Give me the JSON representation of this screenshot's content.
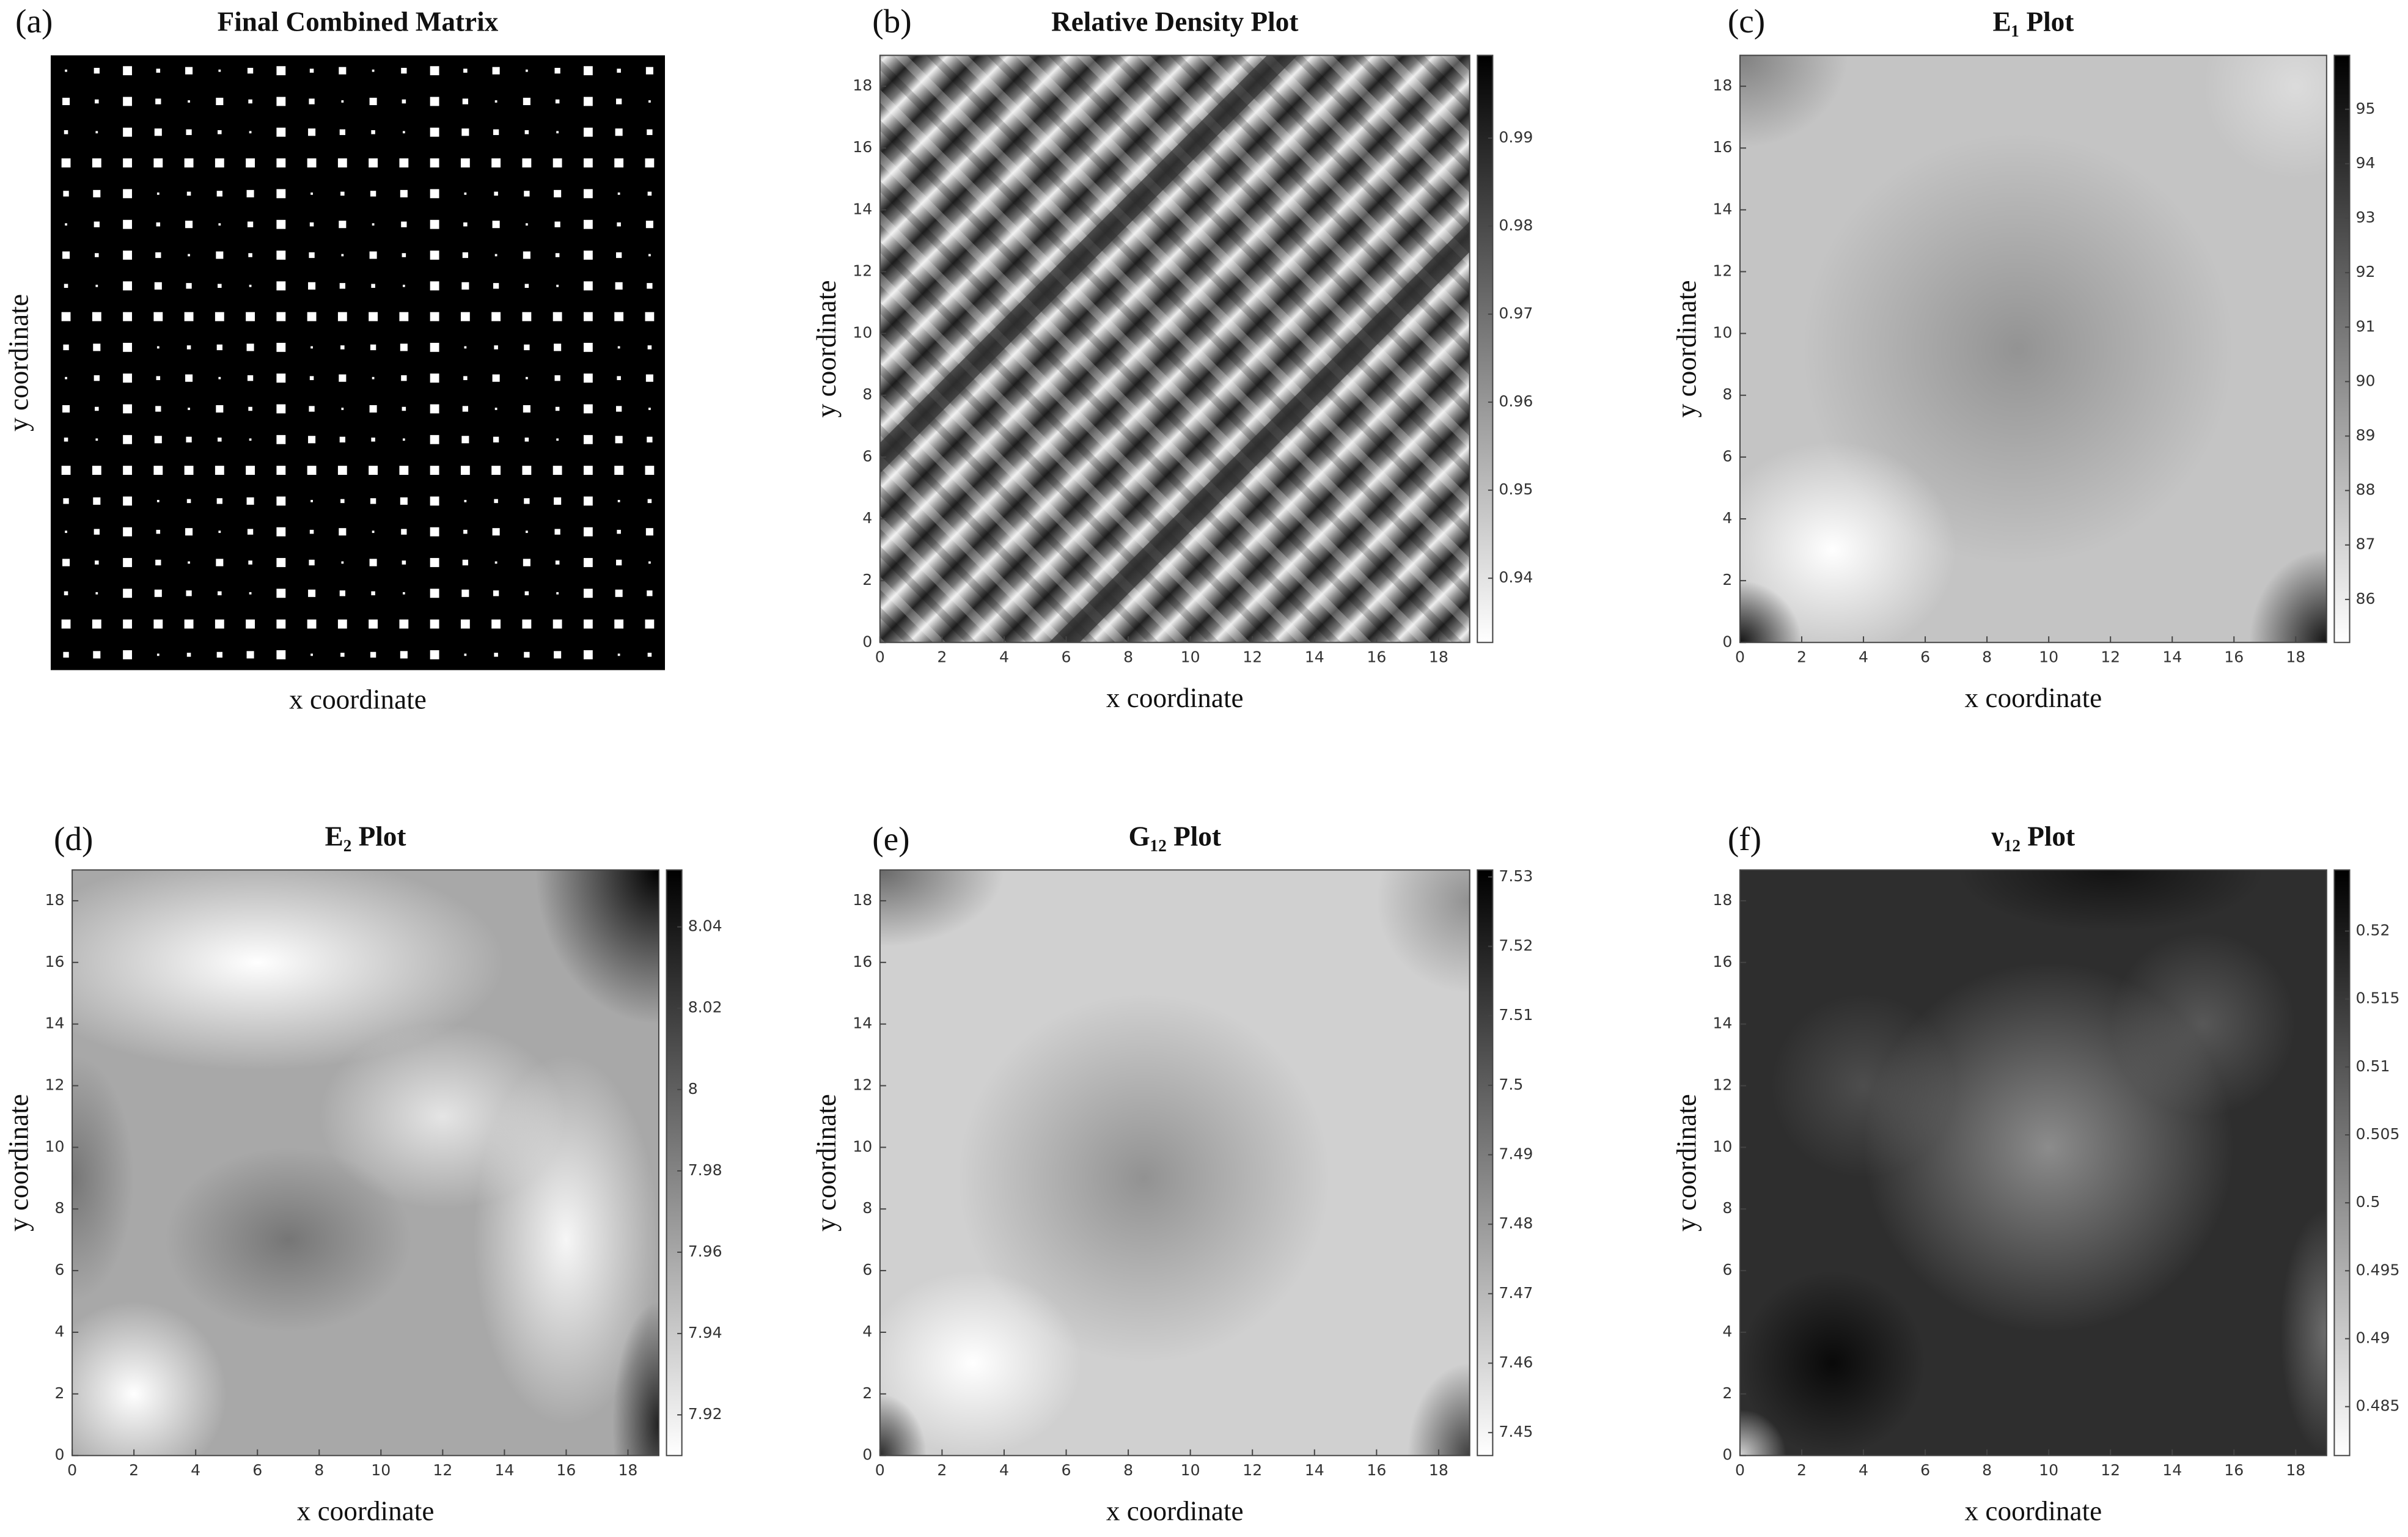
{
  "chart_data": [
    {
      "type": "image",
      "panel_label": "(a)",
      "title": "Final Combined Matrix",
      "xlabel": "x coordinate",
      "ylabel": "y coordinate"
    },
    {
      "type": "heatmap",
      "panel_label": "(b)",
      "title": "Relative Density Plot",
      "xlabel": "x coordinate",
      "ylabel": "y coordinate",
      "xlim": [
        0,
        19
      ],
      "xticks": [
        0,
        2,
        4,
        6,
        8,
        10,
        12,
        14,
        16,
        18
      ],
      "ylim": [
        0,
        19
      ],
      "yticks": [
        0,
        2,
        4,
        6,
        8,
        10,
        12,
        14,
        16,
        18
      ],
      "colorbar": {
        "lim": [
          0.9327,
          0.9994
        ],
        "ticks": [
          0.94,
          0.95,
          0.96,
          0.97,
          0.98,
          0.99
        ]
      }
    },
    {
      "type": "heatmap",
      "panel_label": "(c)",
      "title": "E₁ Plot",
      "xlabel": "x coordinate",
      "ylabel": "y coordinate",
      "xlim": [
        0,
        19
      ],
      "xticks": [
        0,
        2,
        4,
        6,
        8,
        10,
        12,
        14,
        16,
        18
      ],
      "ylim": [
        0,
        19
      ],
      "yticks": [
        0,
        2,
        4,
        6,
        8,
        10,
        12,
        14,
        16,
        18
      ],
      "colorbar": {
        "lim": [
          85.21,
          95.99
        ],
        "ticks": [
          86,
          87,
          88,
          89,
          90,
          91,
          92,
          93,
          94,
          95
        ]
      }
    },
    {
      "type": "heatmap",
      "panel_label": "(d)",
      "title": "E₂ Plot",
      "xlabel": "x coordinate",
      "ylabel": "y coordinate",
      "xlim": [
        0,
        19
      ],
      "xticks": [
        0,
        2,
        4,
        6,
        8,
        10,
        12,
        14,
        16,
        18
      ],
      "ylim": [
        0,
        19
      ],
      "yticks": [
        0,
        2,
        4,
        6,
        8,
        10,
        12,
        14,
        16,
        18
      ],
      "colorbar": {
        "lim": [
          7.91,
          8.054
        ],
        "ticks": [
          7.92,
          7.94,
          7.96,
          7.98,
          8,
          8.02,
          8.04
        ]
      }
    },
    {
      "type": "heatmap",
      "panel_label": "(e)",
      "title": "G₁₂ Plot",
      "xlabel": "x coordinate",
      "ylabel": "y coordinate",
      "xlim": [
        0,
        19
      ],
      "xticks": [
        0,
        2,
        4,
        6,
        8,
        10,
        12,
        14,
        16,
        18
      ],
      "ylim": [
        0,
        19
      ],
      "yticks": [
        0,
        2,
        4,
        6,
        8,
        10,
        12,
        14,
        16,
        18
      ],
      "colorbar": {
        "lim": [
          7.4467,
          7.531
        ],
        "ticks": [
          7.45,
          7.46,
          7.47,
          7.48,
          7.49,
          7.5,
          7.51,
          7.52,
          7.53
        ]
      }
    },
    {
      "type": "heatmap",
      "panel_label": "(f)",
      "title": "ν₁₂ Plot",
      "xlabel": "x coordinate",
      "ylabel": "y coordinate",
      "xlim": [
        0,
        19
      ],
      "xticks": [
        0,
        2,
        4,
        6,
        8,
        10,
        12,
        14,
        16,
        18
      ],
      "ylim": [
        0,
        19
      ],
      "yticks": [
        0,
        2,
        4,
        6,
        8,
        10,
        12,
        14,
        16,
        18
      ],
      "colorbar": {
        "lim": [
          0.4814,
          0.5245
        ],
        "ticks": [
          0.485,
          0.49,
          0.495,
          0.5,
          0.505,
          0.51,
          0.515,
          0.52
        ]
      }
    }
  ]
}
